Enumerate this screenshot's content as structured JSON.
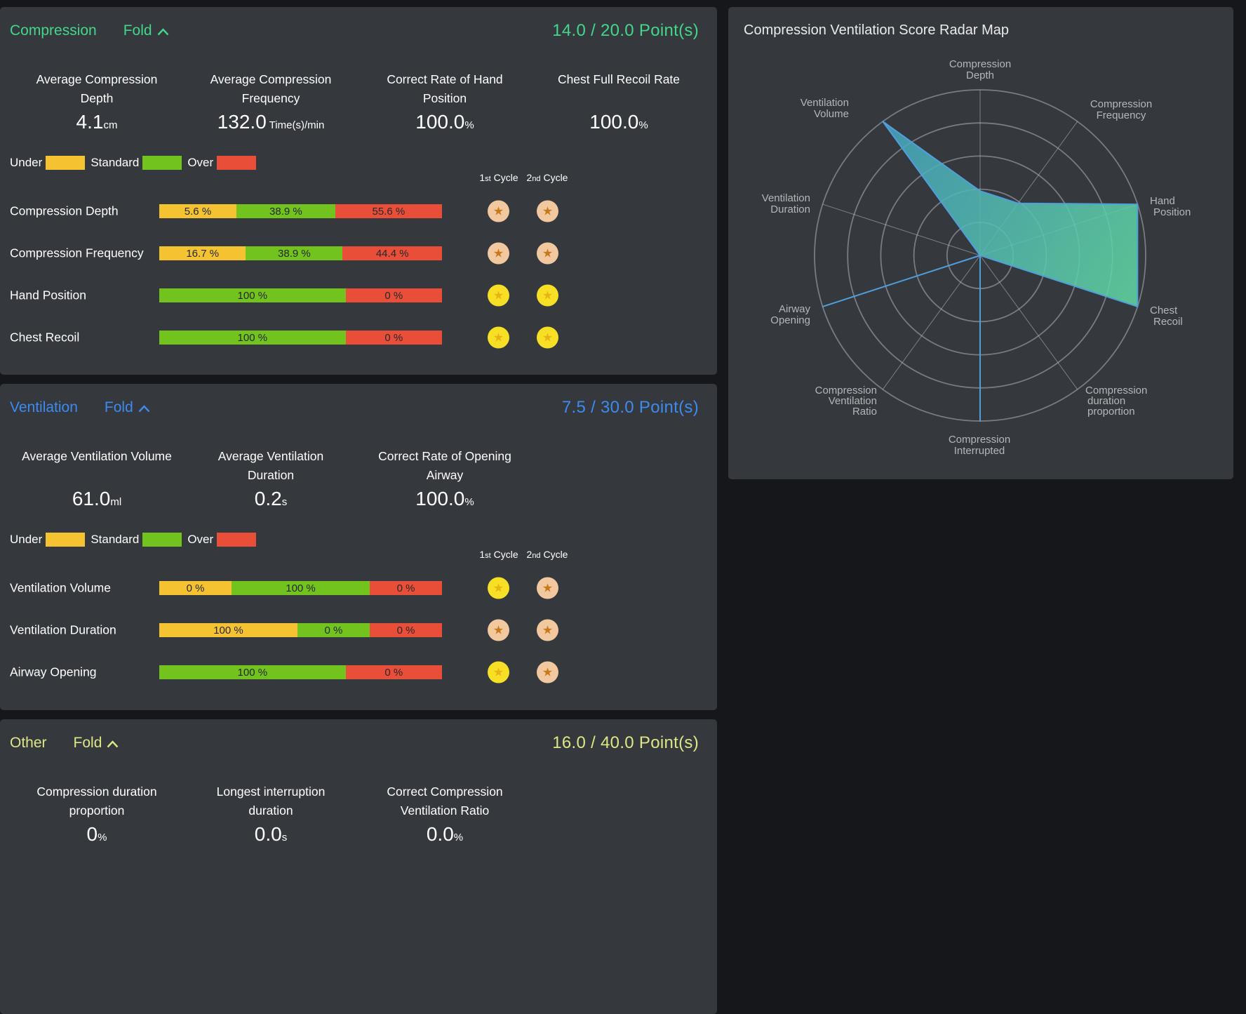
{
  "page": {
    "background": "#15171b",
    "panel_background": "#35383d"
  },
  "bar_colors": {
    "under": "#f5c332",
    "standard": "#72c31e",
    "over": "#e94f38"
  },
  "star_colors": {
    "gold": {
      "bg": "#f6df25",
      "star": "#e9b315"
    },
    "bronze": {
      "bg": "#f2c89e",
      "star": "#c8791b"
    }
  },
  "panels": {
    "compression": {
      "title": "Compression",
      "fold_label": "Fold",
      "accent": "#42d78b",
      "score_text": "14.0 / 20.0 Point(s)",
      "metrics": [
        {
          "lines": [
            "Average Compression",
            "Depth"
          ],
          "value": "4.1",
          "unit": "cm"
        },
        {
          "lines": [
            "Average Compression",
            "Frequency"
          ],
          "value": "132.0",
          "unit": " Time(s)/min"
        },
        {
          "lines": [
            "Correct Rate of Hand",
            "Position"
          ],
          "value": "100.0",
          "unit": "%"
        },
        {
          "lines": [
            "Chest Full Recoil Rate"
          ],
          "value": "100.0",
          "unit": "%"
        }
      ],
      "legend": [
        {
          "label": "Under",
          "key": "under"
        },
        {
          "label": "Standard",
          "key": "standard"
        },
        {
          "label": "Over",
          "key": "over"
        }
      ],
      "cycle_headers": [
        {
          "num": "1",
          "ord": "st",
          "word": " Cycle"
        },
        {
          "num": "2",
          "ord": "nd",
          "word": " Cycle"
        }
      ],
      "rows": [
        {
          "label": "Compression Depth",
          "segments": [
            {
              "key": "under",
              "value": 5.6,
              "text": "5.6 %"
            },
            {
              "key": "standard",
              "value": 38.9,
              "text": "38.9 %"
            },
            {
              "key": "over",
              "value": 55.6,
              "text": "55.6 %"
            }
          ],
          "stars": [
            "bronze",
            "bronze"
          ]
        },
        {
          "label": "Compression Frequency",
          "segments": [
            {
              "key": "under",
              "value": 16.7,
              "text": "16.7 %"
            },
            {
              "key": "standard",
              "value": 38.9,
              "text": "38.9 %"
            },
            {
              "key": "over",
              "value": 44.4,
              "text": "44.4 %"
            }
          ],
          "stars": [
            "bronze",
            "bronze"
          ]
        },
        {
          "label": "Hand Position",
          "segments": [
            {
              "key": "standard",
              "value": 100,
              "text": "100 %"
            },
            {
              "key": "over",
              "value": 0,
              "text": "0 %"
            }
          ],
          "stars": [
            "gold",
            "gold"
          ]
        },
        {
          "label": "Chest Recoil",
          "segments": [
            {
              "key": "standard",
              "value": 100,
              "text": "100 %"
            },
            {
              "key": "over",
              "value": 0,
              "text": "0 %"
            }
          ],
          "stars": [
            "gold",
            "gold"
          ]
        }
      ]
    },
    "ventilation": {
      "title": "Ventilation",
      "fold_label": "Fold",
      "accent": "#3e8bf0",
      "score_text": "7.5 / 30.0 Point(s)",
      "metrics": [
        {
          "lines": [
            "Average Ventilation Volume"
          ],
          "value": "61.0",
          "unit": "ml"
        },
        {
          "lines": [
            "Average Ventilation",
            "Duration"
          ],
          "value": "0.2",
          "unit": "s"
        },
        {
          "lines": [
            "Correct Rate of Opening",
            "Airway"
          ],
          "value": "100.0",
          "unit": "%"
        }
      ],
      "legend": [
        {
          "label": "Under",
          "key": "under"
        },
        {
          "label": "Standard",
          "key": "standard"
        },
        {
          "label": "Over",
          "key": "over"
        }
      ],
      "cycle_headers": [
        {
          "num": "1",
          "ord": "st",
          "word": " Cycle"
        },
        {
          "num": "2",
          "ord": "nd",
          "word": " Cycle"
        }
      ],
      "rows": [
        {
          "label": "Ventilation Volume",
          "segments": [
            {
              "key": "under",
              "value": 0,
              "text": "0 %"
            },
            {
              "key": "standard",
              "value": 100,
              "text": "100 %"
            },
            {
              "key": "over",
              "value": 0,
              "text": "0 %"
            }
          ],
          "stars": [
            "gold",
            "bronze"
          ]
        },
        {
          "label": "Ventilation Duration",
          "segments": [
            {
              "key": "under",
              "value": 100,
              "text": "100 %"
            },
            {
              "key": "standard",
              "value": 0,
              "text": "0 %"
            },
            {
              "key": "over",
              "value": 0,
              "text": "0 %"
            }
          ],
          "stars": [
            "bronze",
            "bronze"
          ]
        },
        {
          "label": "Airway Opening",
          "segments": [
            {
              "key": "standard",
              "value": 100,
              "text": "100 %"
            },
            {
              "key": "over",
              "value": 0,
              "text": "0 %"
            }
          ],
          "stars": [
            "gold",
            "bronze"
          ]
        }
      ]
    },
    "other": {
      "title": "Other",
      "fold_label": "Fold",
      "accent": "#dce885",
      "score_text": "16.0 / 40.0 Point(s)",
      "metrics": [
        {
          "lines": [
            "Compression duration",
            "proportion"
          ],
          "value": "0",
          "unit": "%"
        },
        {
          "lines": [
            "Longest interruption",
            "duration"
          ],
          "value": "0.0",
          "unit": "s"
        },
        {
          "lines": [
            "Correct Compression",
            "Ventilation Ratio"
          ],
          "value": "0.0",
          "unit": "%"
        }
      ]
    }
  },
  "chart_data": {
    "type": "radar",
    "title": "Compression Ventilation Score Radar Map",
    "max": 100,
    "rings": 5,
    "legend_position": "none",
    "axes": [
      "Compression Depth",
      "Compression Frequency",
      "Hand Position",
      "Chest Recoil",
      "Compression duration proportion",
      "Compression Interrupted",
      "Compression Ventilation Ratio",
      "Airway Opening",
      "Ventilation Duration",
      "Ventilation Volume"
    ],
    "axis_label_lines": [
      [
        "Compression",
        "Depth"
      ],
      [
        "Compression",
        "Frequency"
      ],
      [
        "Hand",
        "Position"
      ],
      [
        "Chest",
        "Recoil"
      ],
      [
        "Compression",
        "duration",
        "proportion"
      ],
      [
        "Compression",
        "Interrupted"
      ],
      [
        "Compression",
        "Ventilation",
        "Ratio"
      ],
      [
        "Airway",
        "Opening"
      ],
      [
        "Ventilation",
        "Duration"
      ],
      [
        "Ventilation",
        "Volume"
      ]
    ],
    "values": [
      38.9,
      38.9,
      100,
      100,
      0,
      100,
      0,
      100,
      0,
      100
    ],
    "colors": {
      "ring": "#787c82",
      "spoke": "#c3c6c9",
      "stroke": "#4f9fdc",
      "fill_start": "#44a3c4",
      "fill_end": "#62daa3"
    }
  }
}
